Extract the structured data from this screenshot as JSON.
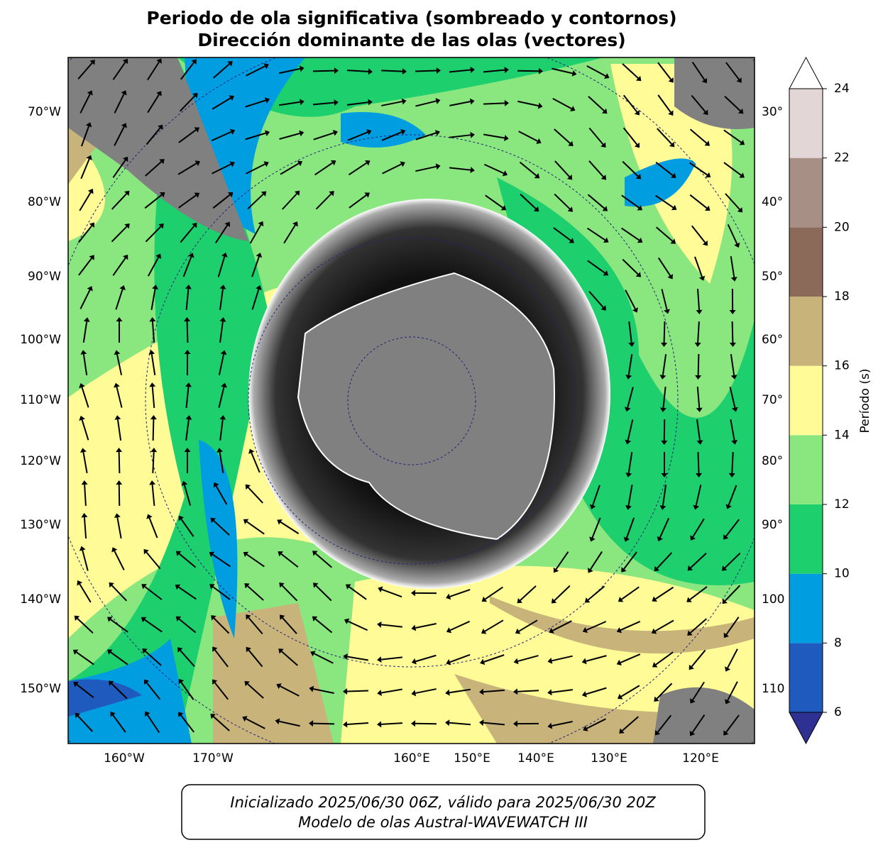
{
  "title": [
    "Periodo de ola significativa (sombreado y contornos)",
    "Dirección dominante de las olas (vectores)"
  ],
  "map": {
    "left_labels": [
      "70°W",
      "80°W",
      "90°W",
      "100°W",
      "110°W",
      "120°W",
      "130°W",
      "140°W",
      "150°W"
    ],
    "bottom_labels": [
      "160°W",
      "170°W",
      "160°E",
      "150°E",
      "140°E",
      "130°E",
      "120°E"
    ],
    "right_labels": [
      "30°",
      "40°",
      "50°",
      "60°",
      "70°",
      "80°",
      "90°",
      "100",
      "110"
    ]
  },
  "colorbar": {
    "label": "Período (s)",
    "ticks": [
      6,
      8,
      10,
      12,
      14,
      16,
      18,
      20,
      22,
      24
    ],
    "colors": [
      "#1f5bbf",
      "#009ee0",
      "#1ecf6e",
      "#8ae67e",
      "#fffb96",
      "#c8b47a",
      "#8b6a5a",
      "#a88f86",
      "#e2d6d6"
    ],
    "under_color": "#2e3192",
    "over_color": "#ffffff"
  },
  "footer": [
    "Inicializado 2025/06/30 06Z, válido para 2025/06/30 20Z",
    "Modelo de olas Austral-WAVEWATCH III"
  ]
}
